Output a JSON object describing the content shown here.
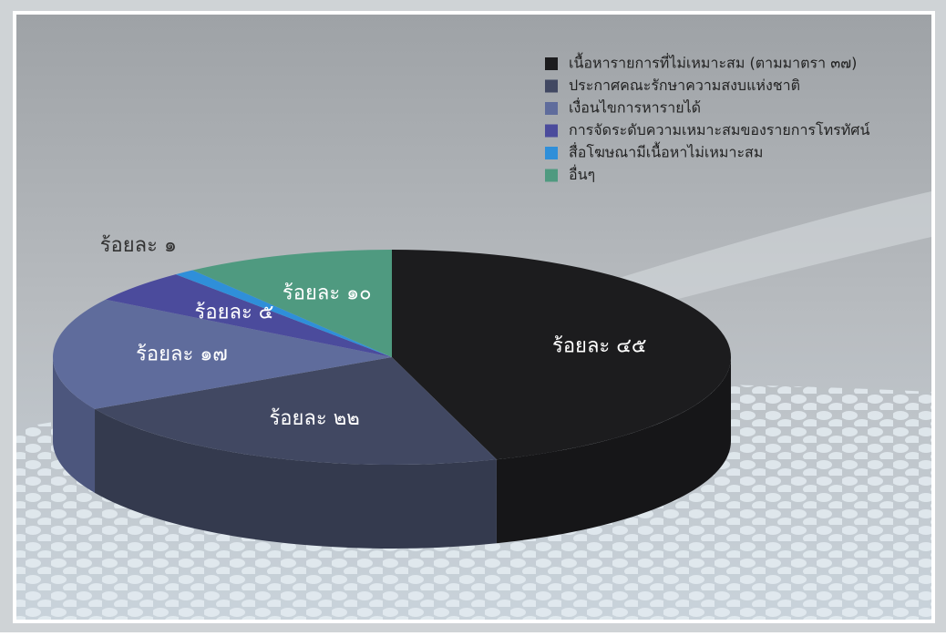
{
  "chart_data": {
    "type": "pie",
    "categories": [
      "เนื้อหารายการที่ไม่เหมาะสม (ตามมาตรา ๓๗)",
      "ประกาศคณะรักษาความสงบแห่งชาติ",
      "เงื่อนไขการหารายได้",
      "การจัดระดับความเหมาะสมของรายการโทรทัศน์",
      "สื่อโฆษณามีเนื้อหาไม่เหมาะสม",
      "อื่นๆ"
    ],
    "values": [
      45,
      22,
      17,
      5,
      1,
      10
    ],
    "value_labels": [
      "ร้อยละ ๔๕",
      "ร้อยละ ๒๒",
      "ร้อยละ ๑๗",
      "ร้อยละ ๕",
      "ร้อยละ ๑",
      "ร้อยละ ๑๐"
    ],
    "colors": [
      "#1c1c1e",
      "#414862",
      "#5f6c9c",
      "#4b4b9c",
      "#2f8fd9",
      "#4f9a80"
    ]
  }
}
